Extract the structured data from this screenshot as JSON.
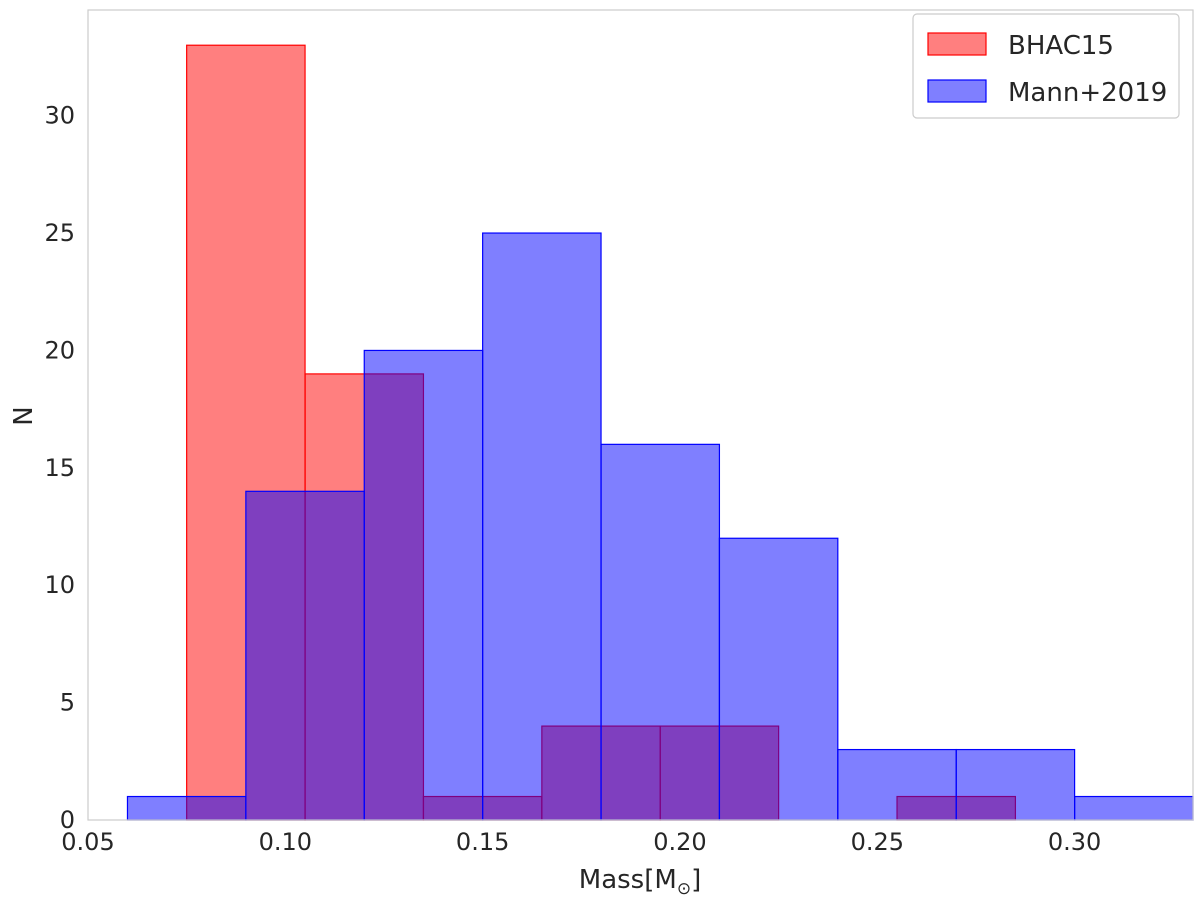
{
  "chart_data": {
    "type": "bar",
    "histogram": true,
    "title": "",
    "xlabel": "Mass",
    "xlabel_unit": "M",
    "xlabel_unit_subscript": "⊙",
    "ylabel": "N",
    "xlim": [
      0.05,
      0.33
    ],
    "ylim": [
      0,
      34.5
    ],
    "xticks": [
      "0.05",
      "0.10",
      "0.15",
      "0.20",
      "0.25",
      "0.30"
    ],
    "xtick_values": [
      0.05,
      0.1,
      0.15,
      0.2,
      0.25,
      0.3
    ],
    "yticks": [
      "0",
      "5",
      "10",
      "15",
      "20",
      "25",
      "30"
    ],
    "ytick_values": [
      0,
      5,
      10,
      15,
      20,
      25,
      30
    ],
    "grid": false,
    "legend_position": "top-right",
    "series": [
      {
        "name": "BHAC15",
        "fill": "#ff0000",
        "stroke": "#ff0000",
        "opacity": 0.5,
        "bins": [
          {
            "x0": 0.075,
            "x1": 0.105,
            "count": 33
          },
          {
            "x0": 0.105,
            "x1": 0.135,
            "count": 19
          },
          {
            "x0": 0.135,
            "x1": 0.165,
            "count": 1
          },
          {
            "x0": 0.165,
            "x1": 0.195,
            "count": 4
          },
          {
            "x0": 0.195,
            "x1": 0.225,
            "count": 4
          },
          {
            "x0": 0.225,
            "x1": 0.255,
            "count": 0
          },
          {
            "x0": 0.255,
            "x1": 0.285,
            "count": 1
          }
        ]
      },
      {
        "name": "Mann+2019",
        "fill": "#0000ff",
        "stroke": "#0000ff",
        "opacity": 0.5,
        "bins": [
          {
            "x0": 0.06,
            "x1": 0.09,
            "count": 1
          },
          {
            "x0": 0.09,
            "x1": 0.12,
            "count": 14
          },
          {
            "x0": 0.12,
            "x1": 0.15,
            "count": 20
          },
          {
            "x0": 0.15,
            "x1": 0.18,
            "count": 25
          },
          {
            "x0": 0.18,
            "x1": 0.21,
            "count": 16
          },
          {
            "x0": 0.21,
            "x1": 0.24,
            "count": 12
          },
          {
            "x0": 0.24,
            "x1": 0.27,
            "count": 3
          },
          {
            "x0": 0.27,
            "x1": 0.3,
            "count": 3
          },
          {
            "x0": 0.3,
            "x1": 0.33,
            "count": 1
          }
        ]
      }
    ]
  }
}
